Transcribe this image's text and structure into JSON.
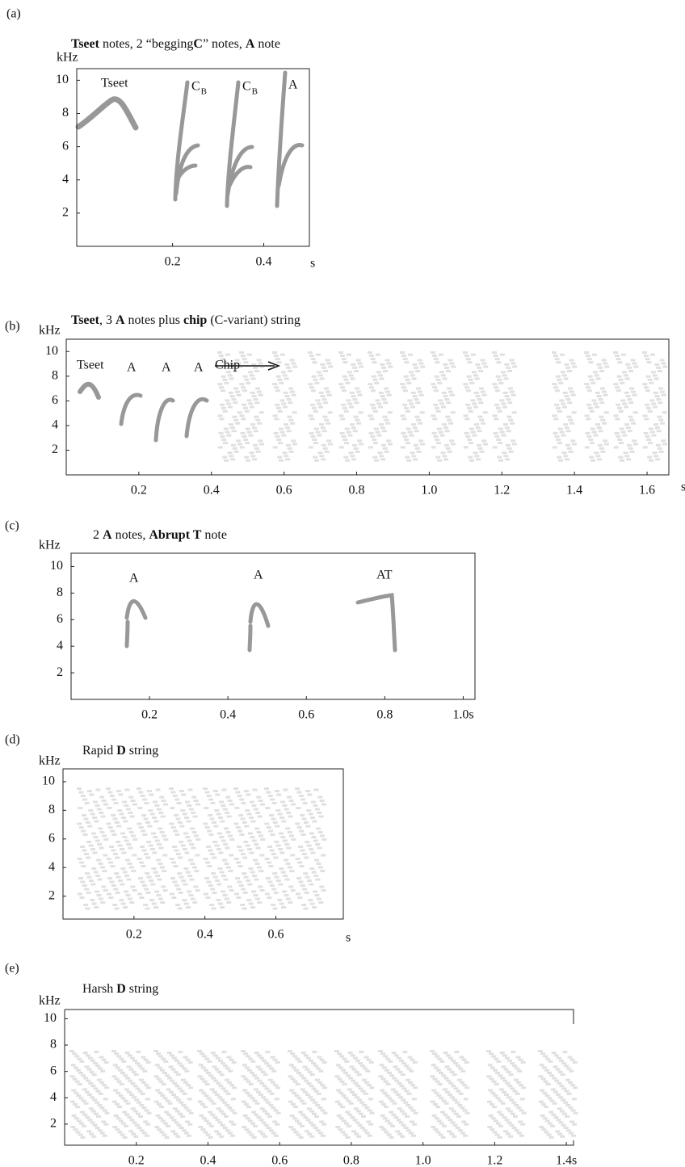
{
  "panels": [
    {
      "label": "(a)",
      "title": [
        {
          "text": "Tseet",
          "bold": true
        },
        {
          "text": " notes, 2 “begging"
        },
        {
          "text": "C",
          "bold": true
        },
        {
          "text": "” notes, "
        },
        {
          "text": "A",
          "bold": true
        },
        {
          "text": " note"
        }
      ],
      "y_label": "kHz",
      "x_unit": "s",
      "xlim": [
        -0.01,
        0.5
      ],
      "ylim": [
        0,
        10.7
      ],
      "xticks": [
        0.2,
        0.4
      ],
      "yticks": [
        2,
        4,
        6,
        8,
        10
      ],
      "annotations": [
        {
          "text": "Tseet"
        },
        {
          "text": "C",
          "sub": "B"
        },
        {
          "text": "C",
          "sub": "B"
        },
        {
          "text": "A"
        }
      ]
    },
    {
      "label": "(b)",
      "title": [
        {
          "text": "Tseet",
          "bold": true
        },
        {
          "text": ", 3 "
        },
        {
          "text": "A",
          "bold": true
        },
        {
          "text": " notes plus "
        },
        {
          "text": "chip",
          "bold": true
        },
        {
          "text": " (C-variant) string"
        }
      ],
      "y_label": "kHz",
      "x_unit": "s",
      "xlim": [
        0,
        1.66
      ],
      "ylim": [
        0,
        11
      ],
      "xticks": [
        0.2,
        0.4,
        0.6,
        0.8,
        {
          "value": 1,
          "label": "1.0"
        },
        1.2,
        1.4,
        1.6
      ],
      "yticks": [
        2,
        4,
        6,
        8,
        10
      ],
      "annotations": [
        {
          "text": "Tseet"
        },
        {
          "text": "A"
        },
        {
          "text": "A"
        },
        {
          "text": "A"
        },
        {
          "text": "Chip"
        }
      ]
    },
    {
      "label": "(c)",
      "title": [
        {
          "text": "2 "
        },
        {
          "text": "A",
          "bold": true
        },
        {
          "text": " notes, "
        },
        {
          "text": "Abrupt T",
          "bold": true
        },
        {
          "text": " note"
        }
      ],
      "y_label": "kHz",
      "xlim": [
        0,
        1.03
      ],
      "ylim": [
        0,
        11
      ],
      "xticks": [
        0.2,
        0.4,
        0.6,
        0.8,
        {
          "value": 1,
          "label": "1.0s"
        }
      ],
      "yticks": [
        2,
        4,
        6,
        8,
        10
      ],
      "annotations": [
        {
          "text": "A"
        },
        {
          "text": "A"
        },
        {
          "text": "AT"
        }
      ]
    },
    {
      "label": "(d)",
      "title": [
        {
          "text": "Rapid "
        },
        {
          "text": "D",
          "bold": true
        },
        {
          "text": " string"
        }
      ],
      "y_label": "kHz",
      "x_unit": "s",
      "xlim": [
        0,
        0.79
      ],
      "ylim": [
        0.4,
        10.9
      ],
      "xticks": [
        0.2,
        0.4,
        0.6
      ],
      "yticks": [
        2,
        4,
        6,
        8,
        10
      ],
      "annotations": []
    },
    {
      "label": "(e)",
      "title": [
        {
          "text": "Harsh "
        },
        {
          "text": "D",
          "bold": true
        },
        {
          "text": " string"
        }
      ],
      "y_label": "kHz",
      "xlim": [
        0,
        1.42
      ],
      "ylim": [
        0.4,
        10.7
      ],
      "xticks": [
        0.2,
        0.4,
        0.6,
        0.8,
        {
          "value": 1,
          "label": "1.0"
        },
        1.2,
        {
          "value": 1.4,
          "label": "1.4s"
        }
      ],
      "yticks": [
        2,
        4,
        6,
        8,
        10
      ],
      "annotations": []
    }
  ]
}
